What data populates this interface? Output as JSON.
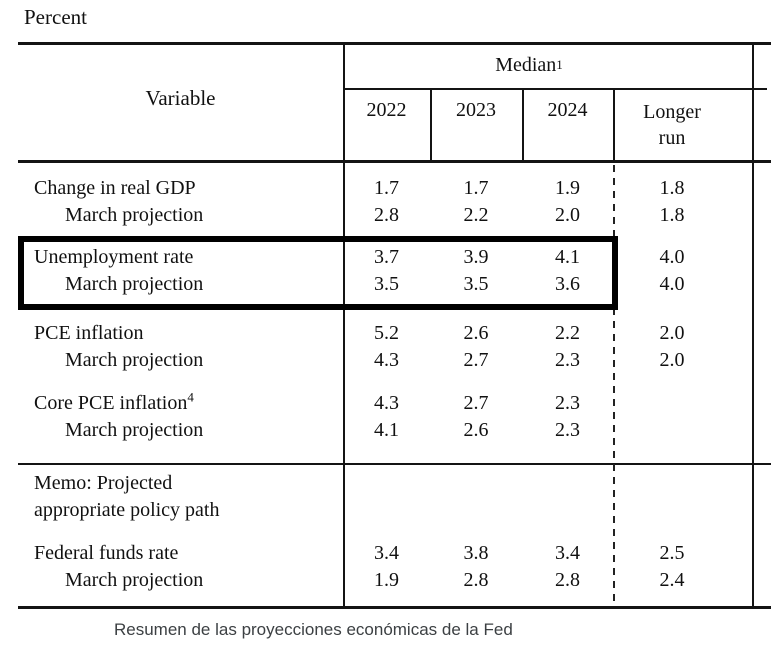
{
  "page": {
    "unit_label": "Percent",
    "caption": "Resumen de las proyecciones económicas de la Fed"
  },
  "colors": {
    "text": "#111111",
    "rules": "#141414",
    "caption_text": "#3c4043",
    "highlight_box": "#000000"
  },
  "table": {
    "header": {
      "variable": "Variable",
      "median": "Median",
      "median_footnote": "1",
      "years": [
        "2022",
        "2023",
        "2024"
      ],
      "longer_run": "Longer run"
    },
    "sections": [
      {
        "rows": [
          {
            "label": "Change in real GDP",
            "values": [
              "1.7",
              "1.7",
              "1.9",
              "1.8"
            ]
          },
          {
            "label": "March projection",
            "values": [
              "2.8",
              "2.2",
              "2.0",
              "1.8"
            ]
          }
        ]
      },
      {
        "highlighted": true,
        "rows": [
          {
            "label": "Unemployment rate",
            "values": [
              "3.7",
              "3.9",
              "4.1",
              "4.0"
            ]
          },
          {
            "label": "March projection",
            "values": [
              "3.5",
              "3.5",
              "3.6",
              "4.0"
            ]
          }
        ]
      },
      {
        "rows": [
          {
            "label": "PCE inflation",
            "values": [
              "5.2",
              "2.6",
              "2.2",
              "2.0"
            ]
          },
          {
            "label": "March projection",
            "values": [
              "4.3",
              "2.7",
              "2.3",
              "2.0"
            ]
          }
        ]
      },
      {
        "rows": [
          {
            "label": "Core PCE inflation",
            "label_footnote": "4",
            "values": [
              "4.3",
              "2.7",
              "2.3",
              ""
            ]
          },
          {
            "label": "March projection",
            "values": [
              "4.1",
              "2.6",
              "2.3",
              ""
            ]
          }
        ]
      },
      {
        "memo": "Memo: Projected appropriate policy path"
      },
      {
        "rows": [
          {
            "label": "Federal funds rate",
            "values": [
              "3.4",
              "3.8",
              "3.4",
              "2.5"
            ]
          },
          {
            "label": "March projection",
            "values": [
              "1.9",
              "2.8",
              "2.8",
              "2.4"
            ]
          }
        ]
      }
    ]
  }
}
